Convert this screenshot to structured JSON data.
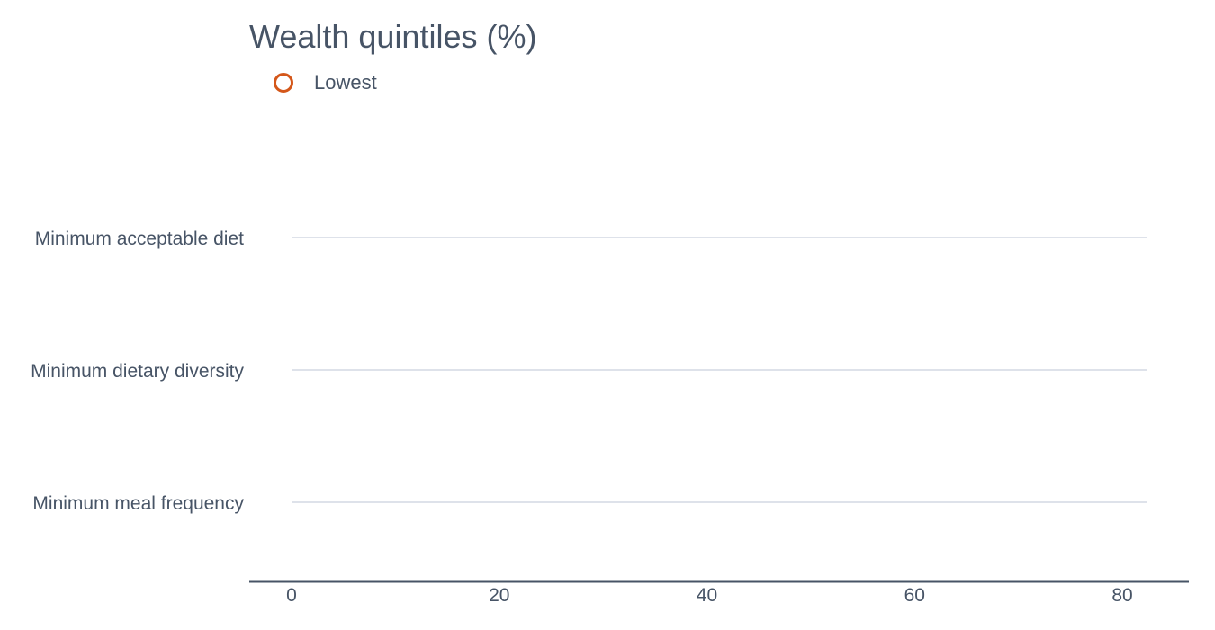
{
  "chart_data": {
    "type": "scatter",
    "title": "Wealth quintiles (%)",
    "categories": [
      "Minimum acceptable diet",
      "Minimum dietary diversity",
      "Minimum meal frequency"
    ],
    "series": [
      {
        "name": "Lowest",
        "color": "#d4571a",
        "marker": "open-circle",
        "values": [
          null,
          null,
          null
        ]
      }
    ],
    "xlim": [
      0,
      82
    ],
    "xticks": [
      0,
      20,
      40,
      60,
      80
    ],
    "xtick_labels": [
      "0",
      "20",
      "40",
      "60",
      "80"
    ],
    "grid": true,
    "legend_position": "top-left"
  }
}
